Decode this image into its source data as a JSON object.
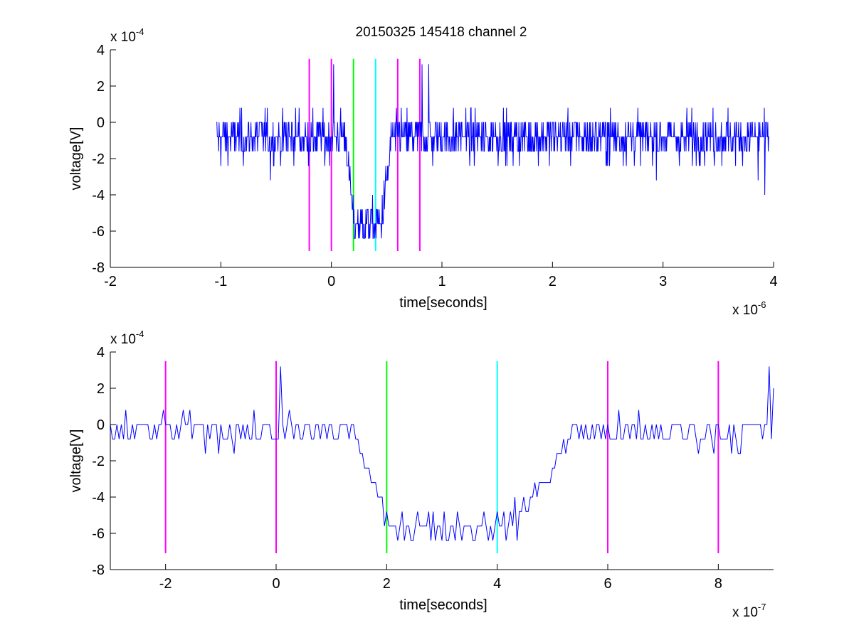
{
  "title": "20150325 145418 channel 2",
  "colors": {
    "trace": "#0000ff",
    "magenta": "#ff00ff",
    "green": "#00ff00",
    "cyan": "#00ffff",
    "axis": "#000000"
  },
  "chart_data": [
    {
      "type": "line",
      "title": "20150325 145418 channel 2",
      "xlabel": "time[seconds]",
      "ylabel": "voltage[V]",
      "x_multiplier": "x 10",
      "x_exponent": "-6",
      "y_multiplier": "x 10",
      "y_exponent": "-4",
      "xlim": [
        -2,
        4
      ],
      "ylim": [
        -8,
        4
      ],
      "xticks": [
        -2,
        -1,
        0,
        1,
        2,
        3,
        4
      ],
      "yticks": [
        -8,
        -6,
        -4,
        -2,
        0,
        2,
        4
      ],
      "grid": false,
      "trace": {
        "name": "",
        "x_range": [
          -1.04,
          3.96
        ],
        "sample_step": 0.004,
        "quantization": 0.8,
        "noise_sigma": 0.9,
        "baseline": -0.8,
        "dip": {
          "start": 0.13,
          "full": 0.2,
          "end": 0.45,
          "recover": 0.55,
          "min": -5.6
        },
        "spikes": [
          [
            0.02,
            3.2
          ],
          [
            0.82,
            3.2
          ],
          [
            0.88,
            3.2
          ],
          [
            3.92,
            -4.0
          ],
          [
            3.86,
            -3.2
          ],
          [
            -0.55,
            -3.2
          ]
        ]
      },
      "vlines": [
        {
          "x": -0.2,
          "color": "magenta",
          "y": [
            -7.1,
            3.5
          ]
        },
        {
          "x": 0.0,
          "color": "magenta",
          "y": [
            -7.1,
            3.5
          ]
        },
        {
          "x": 0.2,
          "color": "green",
          "y": [
            -7.1,
            3.5
          ]
        },
        {
          "x": 0.4,
          "color": "cyan",
          "y": [
            -7.1,
            3.5
          ]
        },
        {
          "x": 0.6,
          "color": "magenta",
          "y": [
            -7.1,
            3.5
          ]
        },
        {
          "x": 0.8,
          "color": "magenta",
          "y": [
            -7.1,
            3.5
          ]
        }
      ]
    },
    {
      "type": "line",
      "title": "",
      "xlabel": "time[seconds]",
      "ylabel": "voltage[V]",
      "x_multiplier": "x 10",
      "x_exponent": "-7",
      "y_multiplier": "x 10",
      "y_exponent": "-4",
      "xlim": [
        -3,
        9
      ],
      "ylim": [
        -8,
        4
      ],
      "xticks": [
        -2,
        0,
        2,
        4,
        6,
        8
      ],
      "yticks": [
        -8,
        -6,
        -4,
        -2,
        0,
        2,
        4
      ],
      "grid": false,
      "trace": {
        "name": "",
        "x_range": [
          -3,
          9
        ],
        "sample_step": 0.04,
        "quantization": 0.8,
        "noise_sigma": 0.7,
        "baseline": -0.4,
        "dip": {
          "start": 1.4,
          "full": 2.0,
          "end": 4.3,
          "recover": 5.4,
          "min": -5.6
        },
        "spikes": [
          [
            0.1,
            3.2
          ],
          [
            8.9,
            3.2
          ],
          [
            9.0,
            2.0
          ]
        ]
      },
      "vlines": [
        {
          "x": -2,
          "color": "magenta",
          "y": [
            -7.1,
            3.5
          ]
        },
        {
          "x": 0,
          "color": "magenta",
          "y": [
            -7.1,
            3.5
          ]
        },
        {
          "x": 2,
          "color": "green",
          "y": [
            -7.1,
            3.5
          ]
        },
        {
          "x": 4,
          "color": "cyan",
          "y": [
            -7.1,
            3.5
          ]
        },
        {
          "x": 6,
          "color": "magenta",
          "y": [
            -7.1,
            3.5
          ]
        },
        {
          "x": 8,
          "color": "magenta",
          "y": [
            -7.1,
            3.5
          ]
        }
      ]
    }
  ]
}
